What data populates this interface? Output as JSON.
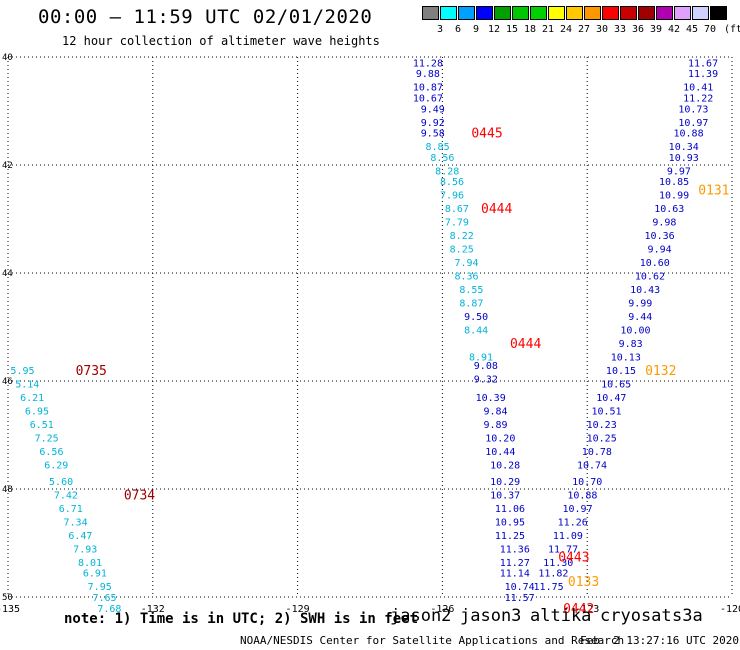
{
  "header": {
    "title": "00:00 – 11:59 UTC 02/01/2020",
    "subtitle": "12 hour collection of altimeter wave heights"
  },
  "legend": {
    "unit": "(ft)",
    "colors": [
      "#808080",
      "#00ffff",
      "#00a0ff",
      "#0000ff",
      "#00a000",
      "#00c800",
      "#00d000",
      "#ffff00",
      "#ffc800",
      "#ff9600",
      "#ff0000",
      "#c80000",
      "#a00000",
      "#b000b0",
      "#e0a0ff",
      "#d0d0ff",
      "#000000"
    ],
    "labels": [
      "3",
      "6",
      "9",
      "12",
      "15",
      "18",
      "21",
      "24",
      "27",
      "30",
      "33",
      "36",
      "39",
      "42",
      "45",
      "70"
    ]
  },
  "chart_data": {
    "type": "scatter",
    "title": "12 hour collection of altimeter wave heights",
    "xlabel": "",
    "ylabel": "",
    "xlim": [
      -135,
      -120
    ],
    "ylim": [
      50,
      40
    ],
    "x_ticks": [
      "-135",
      "-132",
      "-129",
      "-126",
      "-123",
      "-120"
    ],
    "y_ticks": [
      "40",
      "42",
      "44",
      "46",
      "48",
      "50"
    ],
    "grid": true,
    "series": [
      {
        "name": "jason2",
        "color": "#0000c8",
        "points": [
          {
            "lon": -126.3,
            "lat": 40.1,
            "v": "11.28"
          },
          {
            "lon": -126.3,
            "lat": 40.3,
            "v": "9.88"
          },
          {
            "lon": -126.3,
            "lat": 40.55,
            "v": "10.87"
          },
          {
            "lon": -126.3,
            "lat": 40.75,
            "v": "10.67"
          },
          {
            "lon": -126.2,
            "lat": 40.95,
            "v": "9.49"
          },
          {
            "lon": -126.2,
            "lat": 41.2,
            "v": "9.92"
          },
          {
            "lon": -126.2,
            "lat": 41.4,
            "v": "9.58"
          },
          {
            "lon": -125.3,
            "lat": 44.8,
            "v": "9.50"
          },
          {
            "lon": -125.1,
            "lat": 45.7,
            "v": "9.08"
          },
          {
            "lon": -125.1,
            "lat": 45.95,
            "v": "9.32"
          },
          {
            "lon": -125.0,
            "lat": 46.3,
            "v": "10.39"
          },
          {
            "lon": -124.9,
            "lat": 46.55,
            "v": "9.84"
          },
          {
            "lon": -124.9,
            "lat": 46.8,
            "v": "9.89"
          },
          {
            "lon": -124.8,
            "lat": 47.05,
            "v": "10.20"
          },
          {
            "lon": -124.8,
            "lat": 47.3,
            "v": "10.44"
          },
          {
            "lon": -124.7,
            "lat": 47.55,
            "v": "10.28"
          },
          {
            "lon": -124.7,
            "lat": 47.85,
            "v": "10.29"
          },
          {
            "lon": -124.7,
            "lat": 48.1,
            "v": "10.37"
          },
          {
            "lon": -124.6,
            "lat": 48.35,
            "v": "11.06"
          },
          {
            "lon": -124.6,
            "lat": 48.6,
            "v": "10.95"
          },
          {
            "lon": -124.6,
            "lat": 48.85,
            "v": "11.25"
          },
          {
            "lon": -124.5,
            "lat": 49.1,
            "v": "11.36"
          },
          {
            "lon": -124.5,
            "lat": 49.35,
            "v": "11.27"
          },
          {
            "lon": -124.5,
            "lat": 49.55,
            "v": "11.14"
          },
          {
            "lon": -124.4,
            "lat": 49.8,
            "v": "10.74"
          },
          {
            "lon": -124.4,
            "lat": 50.0,
            "v": "11.57"
          },
          {
            "lon": -120.6,
            "lat": 40.1,
            "v": "11.67"
          },
          {
            "lon": -120.6,
            "lat": 40.3,
            "v": "11.39"
          },
          {
            "lon": -120.7,
            "lat": 40.55,
            "v": "10.41"
          },
          {
            "lon": -120.7,
            "lat": 40.75,
            "v": "11.22"
          },
          {
            "lon": -120.8,
            "lat": 40.95,
            "v": "10.73"
          },
          {
            "lon": -120.8,
            "lat": 41.2,
            "v": "10.97"
          },
          {
            "lon": -120.9,
            "lat": 41.4,
            "v": "10.88"
          },
          {
            "lon": -121.0,
            "lat": 41.65,
            "v": "10.34"
          },
          {
            "lon": -121.0,
            "lat": 41.85,
            "v": "10.93"
          },
          {
            "lon": -121.1,
            "lat": 42.1,
            "v": "9.97"
          },
          {
            "lon": -121.2,
            "lat": 42.3,
            "v": "10.85"
          },
          {
            "lon": -121.2,
            "lat": 42.55,
            "v": "10.99"
          },
          {
            "lon": -121.3,
            "lat": 42.8,
            "v": "10.63"
          },
          {
            "lon": -121.4,
            "lat": 43.05,
            "v": "9.98"
          },
          {
            "lon": -121.5,
            "lat": 43.3,
            "v": "10.36"
          },
          {
            "lon": -121.5,
            "lat": 43.55,
            "v": "9.94"
          },
          {
            "lon": -121.6,
            "lat": 43.8,
            "v": "10.60"
          },
          {
            "lon": -121.7,
            "lat": 44.05,
            "v": "10.62"
          },
          {
            "lon": -121.8,
            "lat": 44.3,
            "v": "10.43"
          },
          {
            "lon": -121.9,
            "lat": 44.55,
            "v": "9.99"
          },
          {
            "lon": -121.9,
            "lat": 44.8,
            "v": "9.44"
          },
          {
            "lon": -122.0,
            "lat": 45.05,
            "v": "10.00"
          },
          {
            "lon": -122.1,
            "lat": 45.3,
            "v": "9.83"
          },
          {
            "lon": -122.2,
            "lat": 45.55,
            "v": "10.13"
          },
          {
            "lon": -122.3,
            "lat": 45.8,
            "v": "10.15"
          },
          {
            "lon": -122.4,
            "lat": 46.05,
            "v": "10.65"
          },
          {
            "lon": -122.5,
            "lat": 46.3,
            "v": "10.47"
          },
          {
            "lon": -122.6,
            "lat": 46.55,
            "v": "10.51"
          },
          {
            "lon": -122.7,
            "lat": 46.8,
            "v": "10.23"
          },
          {
            "lon": -122.7,
            "lat": 47.05,
            "v": "10.25"
          },
          {
            "lon": -122.8,
            "lat": 47.3,
            "v": "10.78"
          },
          {
            "lon": -122.9,
            "lat": 47.55,
            "v": "10.74"
          },
          {
            "lon": -123.0,
            "lat": 47.85,
            "v": "10.70"
          },
          {
            "lon": -123.1,
            "lat": 48.1,
            "v": "10.88"
          },
          {
            "lon": -123.2,
            "lat": 48.35,
            "v": "10.97"
          },
          {
            "lon": -123.3,
            "lat": 48.6,
            "v": "11.26"
          },
          {
            "lon": -123.4,
            "lat": 48.85,
            "v": "11.09"
          },
          {
            "lon": -123.5,
            "lat": 49.1,
            "v": "11.77"
          },
          {
            "lon": -123.6,
            "lat": 49.35,
            "v": "11.30"
          },
          {
            "lon": -123.7,
            "lat": 49.55,
            "v": "11.82"
          },
          {
            "lon": -123.8,
            "lat": 49.8,
            "v": "11.75"
          }
        ]
      },
      {
        "name": "cyan",
        "color": "#00b4d8",
        "points": [
          {
            "lon": -126.1,
            "lat": 41.65,
            "v": "8.85"
          },
          {
            "lon": -126.0,
            "lat": 41.85,
            "v": "8.56"
          },
          {
            "lon": -125.9,
            "lat": 42.1,
            "v": "8.28"
          },
          {
            "lon": -125.8,
            "lat": 42.3,
            "v": "8.56"
          },
          {
            "lon": -125.8,
            "lat": 42.55,
            "v": "7.96"
          },
          {
            "lon": -125.7,
            "lat": 42.8,
            "v": "8.67"
          },
          {
            "lon": -125.7,
            "lat": 43.05,
            "v": "7.79"
          },
          {
            "lon": -125.6,
            "lat": 43.3,
            "v": "8.22"
          },
          {
            "lon": -125.6,
            "lat": 43.55,
            "v": "8.25"
          },
          {
            "lon": -125.5,
            "lat": 43.8,
            "v": "7.94"
          },
          {
            "lon": -125.5,
            "lat": 44.05,
            "v": "8.36"
          },
          {
            "lon": -125.4,
            "lat": 44.3,
            "v": "8.55"
          },
          {
            "lon": -125.4,
            "lat": 44.55,
            "v": "8.87"
          },
          {
            "lon": -125.3,
            "lat": 45.05,
            "v": "8.44"
          },
          {
            "lon": -125.2,
            "lat": 45.55,
            "v": "8.91"
          },
          {
            "lon": -134.7,
            "lat": 45.8,
            "v": "5.95"
          },
          {
            "lon": -134.6,
            "lat": 46.05,
            "v": "5.14"
          },
          {
            "lon": -134.5,
            "lat": 46.3,
            "v": "6.21"
          },
          {
            "lon": -134.4,
            "lat": 46.55,
            "v": "6.95"
          },
          {
            "lon": -134.3,
            "lat": 46.8,
            "v": "6.51"
          },
          {
            "lon": -134.2,
            "lat": 47.05,
            "v": "7.25"
          },
          {
            "lon": -134.1,
            "lat": 47.3,
            "v": "6.56"
          },
          {
            "lon": -134.0,
            "lat": 47.55,
            "v": "6.29"
          },
          {
            "lon": -133.9,
            "lat": 47.85,
            "v": "5.60"
          },
          {
            "lon": -133.8,
            "lat": 48.1,
            "v": "7.42"
          },
          {
            "lon": -133.7,
            "lat": 48.35,
            "v": "6.71"
          },
          {
            "lon": -133.6,
            "lat": 48.6,
            "v": "7.34"
          },
          {
            "lon": -133.5,
            "lat": 48.85,
            "v": "6.47"
          },
          {
            "lon": -133.4,
            "lat": 49.1,
            "v": "7.93"
          },
          {
            "lon": -133.3,
            "lat": 49.35,
            "v": "8.01"
          },
          {
            "lon": -133.2,
            "lat": 49.55,
            "v": "6.91"
          },
          {
            "lon": -133.1,
            "lat": 49.8,
            "v": "7.95"
          },
          {
            "lon": -133.0,
            "lat": 50.0,
            "v": "7.65"
          },
          {
            "lon": -132.9,
            "lat": 50.2,
            "v": "7.68"
          }
        ]
      }
    ],
    "time_labels": [
      {
        "text": "0445",
        "color": "#ff0000",
        "lon": -125.4,
        "lat": 41.4
      },
      {
        "text": "0444",
        "color": "#ff0000",
        "lon": -125.2,
        "lat": 42.8
      },
      {
        "text": "0444",
        "color": "#ff0000",
        "lon": -124.6,
        "lat": 45.3
      },
      {
        "text": "0443",
        "color": "#ff0000",
        "lon": -123.6,
        "lat": 49.25
      },
      {
        "text": "0442",
        "color": "#ff0000",
        "lon": -123.5,
        "lat": 50.2
      },
      {
        "text": "0131",
        "color": "#ff9900",
        "lon": -120.7,
        "lat": 42.45
      },
      {
        "text": "0132",
        "color": "#ff9900",
        "lon": -121.8,
        "lat": 45.8
      },
      {
        "text": "0133",
        "color": "#ff9900",
        "lon": -123.4,
        "lat": 49.7
      },
      {
        "text": "0735",
        "color": "#a00000",
        "lon": -133.6,
        "lat": 45.8
      },
      {
        "text": "0734",
        "color": "#a00000",
        "lon": -132.6,
        "lat": 48.1
      }
    ]
  },
  "footer": {
    "note": "note: 1) Time is in UTC; 2) SWH is in feet",
    "satellites": [
      {
        "name": "jason2",
        "color": "#0000c8"
      },
      {
        "name": "jason3",
        "color": "#00a000"
      },
      {
        "name": "altika",
        "color": "#ff9900"
      },
      {
        "name": "cryosat",
        "color": "#ff0000"
      },
      {
        "name": "s3a",
        "color": "#a00000"
      }
    ],
    "credit": "NOAA/NESDIS Center for Satellite Applications and Research",
    "timestamp": "Feb  2 13:27:16 UTC 2020"
  }
}
